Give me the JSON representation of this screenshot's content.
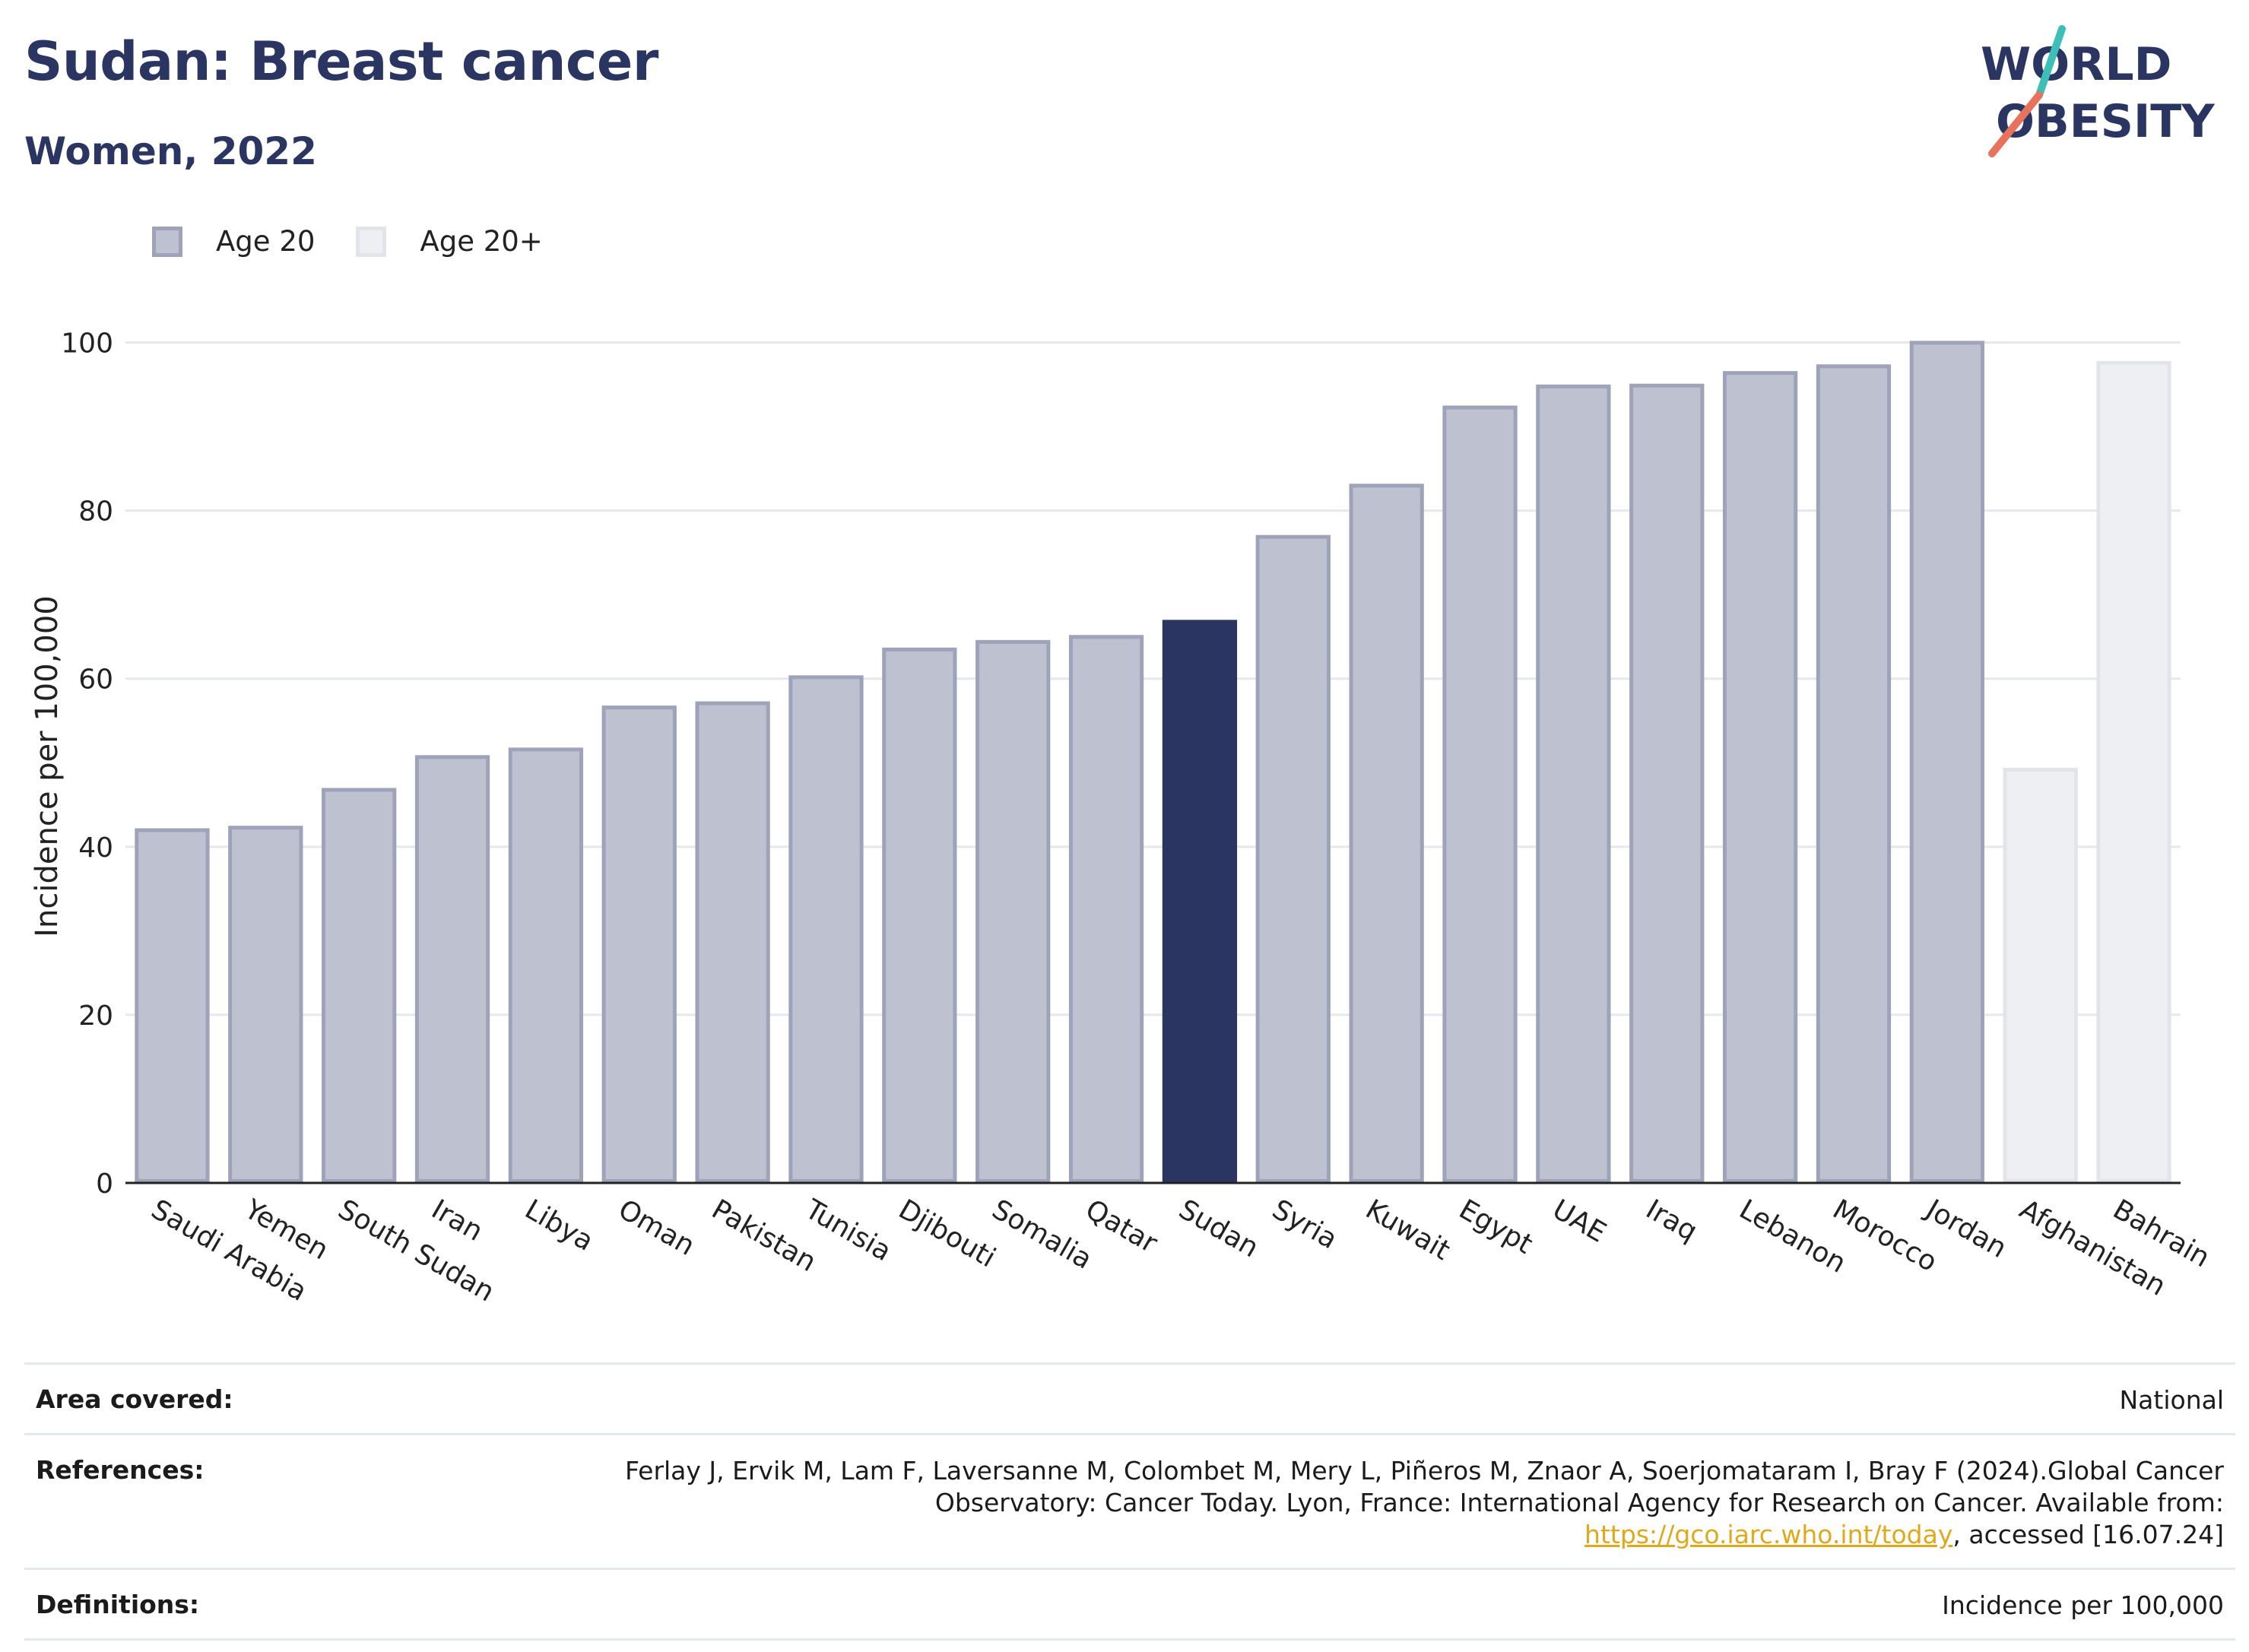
{
  "header": {
    "title": "Sudan: Breast cancer",
    "subtitle": "Women, 2022"
  },
  "logo": {
    "line1": "WORLD",
    "line2": "OBESITY",
    "colors": {
      "text": "#2b3562",
      "slash_teal": "#3bbfb7",
      "slash_coral": "#e8735c"
    }
  },
  "legend": {
    "items": [
      {
        "label": "Age 20",
        "color": "#bec1cf"
      },
      {
        "label": "Age 20+",
        "color": "#eeeff3"
      }
    ]
  },
  "chart_data": {
    "type": "bar",
    "ylabel": "Incidence per 100,000",
    "ylim": [
      0,
      110
    ],
    "yticks": [
      0,
      20,
      40,
      60,
      80,
      100
    ],
    "grid": true,
    "legend_placement": "top-left",
    "categories": [
      "Saudi Arabia",
      "Yemen",
      "South Sudan",
      "Iran",
      "Libya",
      "Oman",
      "Pakistan",
      "Tunisia",
      "Djibouti",
      "Somalia",
      "Qatar",
      "Sudan",
      "Syria",
      "Kuwait",
      "Egypt",
      "UAE",
      "Iraq",
      "Lebanon",
      "Morocco",
      "Jordan",
      "Afghanistan",
      "Bahrain"
    ],
    "values": [
      42.2,
      42.5,
      47.0,
      50.9,
      51.8,
      56.8,
      57.3,
      60.4,
      63.7,
      64.6,
      65.2,
      67.0,
      77.1,
      83.2,
      92.5,
      95.0,
      95.1,
      96.6,
      97.4,
      100.2,
      49.4,
      97.8
    ],
    "groups": [
      "Age 20",
      "Age 20",
      "Age 20",
      "Age 20",
      "Age 20",
      "Age 20",
      "Age 20",
      "Age 20",
      "Age 20",
      "Age 20",
      "Age 20",
      "highlight",
      "Age 20",
      "Age 20",
      "Age 20",
      "Age 20",
      "Age 20",
      "Age 20",
      "Age 20",
      "Age 20",
      "Age 20+",
      "Age 20+"
    ],
    "highlight": "Sudan",
    "colors": {
      "age20_fill": "#bec1cf",
      "age20_border": "#9ea3b9",
      "age20plus_fill": "#eeeff3",
      "age20plus_border": "#e3e4ea",
      "highlight_fill": "#2b3562",
      "grid": "#e6e8ec",
      "axis": "#222222"
    }
  },
  "info": {
    "area_label": "Area covered:",
    "area_value": "National",
    "references_label": "References:",
    "references_text": "Ferlay J, Ervik M, Lam F, Laversanne M, Colombet M, Mery L, Piñeros M, Znaor A, Soerjomataram I, Bray F (2024).Global Cancer Observatory: Cancer Today. Lyon, France: International Agency for Research on Cancer. Available from:",
    "references_link": "https://gco.iarc.who.int/today",
    "references_suffix": ", accessed [16.07.24]",
    "definitions_label": "Definitions:",
    "definitions_value": "Incidence per 100,000"
  }
}
